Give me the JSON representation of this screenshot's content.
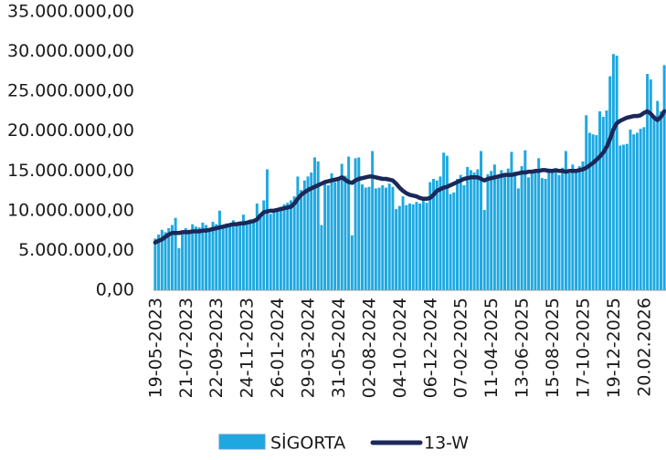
{
  "chart_data": {
    "type": "bar-line",
    "categories": [
      "19-05-2023",
      null,
      null,
      null,
      null,
      null,
      null,
      null,
      null,
      "21-07-2023",
      null,
      null,
      null,
      null,
      null,
      null,
      null,
      null,
      "22-09-2023",
      null,
      null,
      null,
      null,
      null,
      null,
      null,
      null,
      "24-11-2023",
      null,
      null,
      null,
      null,
      null,
      null,
      null,
      null,
      "26-01-2024",
      null,
      null,
      null,
      null,
      null,
      null,
      null,
      null,
      "29-03-2024",
      null,
      null,
      null,
      null,
      null,
      null,
      null,
      null,
      "31-05-2024",
      null,
      null,
      null,
      null,
      null,
      null,
      null,
      null,
      "02-08-2024",
      null,
      null,
      null,
      null,
      null,
      null,
      null,
      null,
      "04-10-2024",
      null,
      null,
      null,
      null,
      null,
      null,
      null,
      null,
      "06-12-2024",
      null,
      null,
      null,
      null,
      null,
      null,
      null,
      null,
      "07-02-2025",
      null,
      null,
      null,
      null,
      null,
      null,
      null,
      null,
      "11-04-2025",
      null,
      null,
      null,
      null,
      null,
      null,
      null,
      null,
      "13-06-2025",
      null,
      null,
      null,
      null,
      null,
      null,
      null,
      null,
      "15-08-2025",
      null,
      null,
      null,
      null,
      null,
      null,
      null,
      null,
      "17-10-2025",
      null,
      null,
      null,
      null,
      null,
      null,
      null,
      null,
      "19-12-2025",
      null,
      null,
      null,
      null,
      null,
      null,
      null,
      null,
      "20.02.2026",
      null,
      null,
      null,
      null,
      null,
      null
    ],
    "series": [
      {
        "name": "SİGORTA",
        "kind": "bar",
        "color": "#1ea8e0",
        "values": [
          6500000.0,
          7000000.0,
          7600000.0,
          7300000.0,
          7800000.0,
          8200000.0,
          9100000.0,
          5300000.0,
          7500000.0,
          7800000.0,
          7600000.0,
          8300000.0,
          8000000.0,
          7900000.0,
          8500000.0,
          8200000.0,
          7800000.0,
          8600000.0,
          8300000.0,
          10000000.0,
          8100000.0,
          8400000.0,
          8000000.0,
          8800000.0,
          8500000.0,
          8300000.0,
          9500000.0,
          8600000.0,
          8900000.0,
          8700000.0,
          10900000.0,
          9300000.0,
          11300000.0,
          15200000.0,
          9600000.0,
          10000000.0,
          10300000.0,
          10500000.0,
          10800000.0,
          11000000.0,
          11300000.0,
          11800000.0,
          14300000.0,
          12600000.0,
          13800000.0,
          14300000.0,
          14800000.0,
          16700000.0,
          16200000.0,
          8200000.0,
          13400000.0,
          13200000.0,
          14700000.0,
          13600000.0,
          14000000.0,
          15900000.0,
          14400000.0,
          16800000.0,
          6900000.0,
          16600000.0,
          16700000.0,
          13300000.0,
          12900000.0,
          13000000.0,
          17500000.0,
          12800000.0,
          12900000.0,
          13200000.0,
          12900000.0,
          13400000.0,
          13000000.0,
          10200000.0,
          10600000.0,
          11800000.0,
          10700000.0,
          10900000.0,
          10800000.0,
          11100000.0,
          10900000.0,
          11300000.0,
          11000000.0,
          13600000.0,
          14000000.0,
          13800000.0,
          14300000.0,
          17300000.0,
          16900000.0,
          12100000.0,
          12300000.0,
          14000000.0,
          14500000.0,
          13200000.0,
          15500000.0,
          15100000.0,
          14800000.0,
          15200000.0,
          17500000.0,
          10100000.0,
          14600000.0,
          15000000.0,
          15800000.0,
          14400000.0,
          15100000.0,
          14700000.0,
          15300000.0,
          17400000.0,
          14900000.0,
          12800000.0,
          15600000.0,
          17600000.0,
          14200000.0,
          14800000.0,
          15000000.0,
          16600000.0,
          14100000.0,
          14000000.0,
          15300000.0,
          15200000.0,
          14900000.0,
          14500000.0,
          15400000.0,
          17500000.0,
          14700000.0,
          15800000.0,
          14900000.0,
          15600000.0,
          16200000.0,
          22000000.0,
          19800000.0,
          19600000.0,
          19500000.0,
          22500000.0,
          21800000.0,
          22600000.0,
          26900000.0,
          29700000.0,
          29500000.0,
          18200000.0,
          18300000.0,
          18400000.0,
          20200000.0,
          19600000.0,
          19800000.0,
          20300000.0,
          20500000.0,
          27200000.0,
          26500000.0,
          22000000.0,
          23800000.0,
          22500000.0,
          28300000.0
        ]
      },
      {
        "name": "13-W",
        "kind": "line",
        "color": "#1b2858",
        "values": [
          6000000.0,
          6200000.0,
          6400000.0,
          6700000.0,
          7000000.0,
          7200000.0,
          7200000.0,
          7200000.0,
          7300000.0,
          7300000.0,
          7300000.0,
          7400000.0,
          7400000.0,
          7400000.0,
          7500000.0,
          7500000.0,
          7600000.0,
          7700000.0,
          7800000.0,
          7900000.0,
          8000000.0,
          8100000.0,
          8200000.0,
          8300000.0,
          8300000.0,
          8400000.0,
          8400000.0,
          8500000.0,
          8600000.0,
          8700000.0,
          8900000.0,
          9400000.0,
          9800000.0,
          9900000.0,
          10000000.0,
          10000000.0,
          10100000.0,
          10200000.0,
          10300000.0,
          10400000.0,
          10500000.0,
          10900000.0,
          11500000.0,
          12000000.0,
          12300000.0,
          12600000.0,
          12800000.0,
          13000000.0,
          13200000.0,
          13400000.0,
          13600000.0,
          13700000.0,
          13800000.0,
          13900000.0,
          14000000.0,
          14200000.0,
          13900000.0,
          13600000.0,
          13500000.0,
          13800000.0,
          14000000.0,
          14100000.0,
          14200000.0,
          14300000.0,
          14300000.0,
          14200000.0,
          14100000.0,
          14000000.0,
          14000000.0,
          13900000.0,
          13800000.0,
          13400000.0,
          12900000.0,
          12500000.0,
          12200000.0,
          12000000.0,
          11900000.0,
          11800000.0,
          11600000.0,
          11500000.0,
          11500000.0,
          11600000.0,
          12000000.0,
          12500000.0,
          12700000.0,
          12900000.0,
          13000000.0,
          13200000.0,
          13400000.0,
          13600000.0,
          13800000.0,
          14000000.0,
          14100000.0,
          14200000.0,
          14200000.0,
          14200000.0,
          14000000.0,
          13800000.0,
          14000000.0,
          14100000.0,
          14200000.0,
          14300000.0,
          14400000.0,
          14500000.0,
          14500000.0,
          14500000.0,
          14600000.0,
          14700000.0,
          14800000.0,
          14800000.0,
          14900000.0,
          14900000.0,
          15000000.0,
          15000000.0,
          15100000.0,
          15100000.0,
          15000000.0,
          15000000.0,
          15100000.0,
          15000000.0,
          15000000.0,
          14900000.0,
          15000000.0,
          15000000.0,
          15000000.0,
          15100000.0,
          15200000.0,
          15400000.0,
          15700000.0,
          16000000.0,
          16400000.0,
          16800000.0,
          17300000.0,
          18000000.0,
          19000000.0,
          20200000.0,
          21000000.0,
          21300000.0,
          21500000.0,
          21700000.0,
          21800000.0,
          21900000.0,
          21900000.0,
          22000000.0,
          22300000.0,
          22500000.0,
          22200000.0,
          21700000.0,
          21400000.0,
          21800000.0,
          22500000.0
        ]
      }
    ],
    "ylim": [
      0,
      35000000
    ],
    "yticks": [
      {
        "value": 0,
        "label": "0,00"
      },
      {
        "value": 5000000,
        "label": "5.000.000,00"
      },
      {
        "value": 10000000,
        "label": "10.000.000,00"
      },
      {
        "value": 15000000,
        "label": "15.000.000,00"
      },
      {
        "value": 20000000,
        "label": "20.000.000,00"
      },
      {
        "value": 25000000,
        "label": "25.000.000,00"
      },
      {
        "value": 30000000,
        "label": "30.000.000,00"
      },
      {
        "value": 35000000,
        "label": "35.000.000,00"
      }
    ],
    "legend": "bottom"
  }
}
